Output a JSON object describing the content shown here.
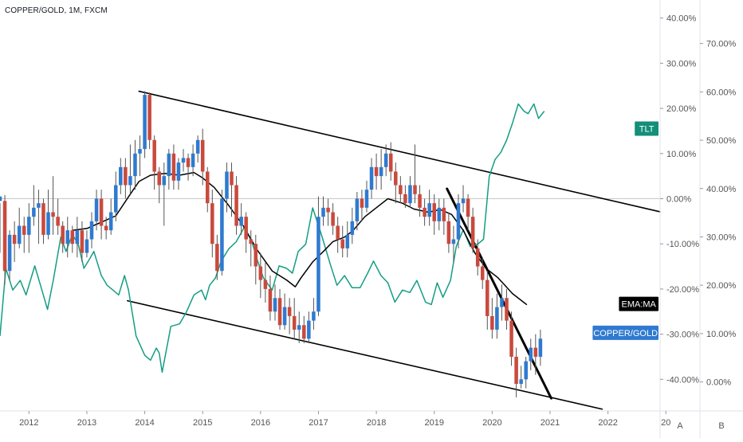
{
  "header": {
    "symbol_label": "COPPER/GOLD, 1M, FXCM"
  },
  "colors": {
    "background": "#ffffff",
    "up_candle": "#2f7ad0",
    "down_candle": "#c94a3d",
    "wick": "#555555",
    "tlt_line": "#149d85",
    "ema_line": "#000000",
    "trendline": "#000000",
    "zero_line": "#c8c8c8",
    "axis_text": "#555555",
    "tlt_tag_bg": "#138f7a",
    "ema_tag_bg": "#000000",
    "copper_tag_bg": "#2f7ad0"
  },
  "chart_data": {
    "type": "candlestick",
    "title": "COPPER/GOLD, 1M, FXCM",
    "x_axis": {
      "tick_labels": [
        "2012",
        "2013",
        "2014",
        "2015",
        "2016",
        "2017",
        "2018",
        "2019",
        "2020",
        "2021",
        "2022",
        "20"
      ],
      "range": [
        2011.5,
        2022.9
      ]
    },
    "axis_a": {
      "name": "A",
      "tick_labels": [
        "40.00%",
        "30.00%",
        "20.00%",
        "10.00%",
        "0.00%",
        "-10.00%",
        "-20.00%",
        "-30.00%",
        "-40.00%"
      ],
      "range_pct": [
        -47,
        44
      ]
    },
    "axis_b": {
      "name": "B",
      "tick_labels": [
        "70.00%",
        "60.00%",
        "50.00%",
        "40.00%",
        "30.00%",
        "20.00%",
        "10.00%",
        "0.00%"
      ],
      "range_pct": [
        -6,
        79
      ]
    },
    "grid": false,
    "zero_line": true,
    "candles_copper_gold_pct": [
      [
        -0.5,
        0.5,
        -12,
        -1
      ],
      [
        -0.5,
        -16,
        -19,
        0.8
      ],
      [
        -16,
        -8,
        -18,
        -7
      ],
      [
        -8,
        -10,
        -14,
        -5
      ],
      [
        -10,
        -6,
        -11,
        -2
      ],
      [
        -6,
        -8,
        -12,
        -4
      ],
      [
        -8,
        -4,
        -12,
        -1
      ],
      [
        -4,
        -2,
        -6,
        3
      ],
      [
        -2,
        -1,
        -10,
        2
      ],
      [
        -1,
        -8,
        -10,
        0
      ],
      [
        -8,
        -3,
        -9,
        2
      ],
      [
        -3,
        -4,
        -8,
        5
      ],
      [
        -4,
        -6,
        -8,
        0
      ],
      [
        -6,
        -10,
        -12,
        -5
      ],
      [
        -10,
        -7,
        -13,
        -4
      ],
      [
        -7,
        -10,
        -12,
        -6
      ],
      [
        -10,
        -7,
        -13,
        -4
      ],
      [
        -7,
        -12,
        -14,
        -5
      ],
      [
        -12,
        -9,
        -13,
        -7
      ],
      [
        -9,
        -5,
        -11,
        -3
      ],
      [
        -5,
        0,
        -7,
        2
      ],
      [
        0,
        -6,
        -9,
        2
      ],
      [
        -6,
        -7,
        -9,
        -4
      ],
      [
        -7,
        -3,
        -8,
        0
      ],
      [
        -3,
        3,
        -5,
        6
      ],
      [
        3,
        7,
        1,
        9
      ],
      [
        7,
        3,
        0,
        9
      ],
      [
        3,
        5,
        1,
        12
      ],
      [
        5,
        10,
        2,
        13
      ],
      [
        10,
        11,
        5,
        14
      ],
      [
        11,
        23,
        9,
        23.8
      ],
      [
        23,
        13,
        11,
        23.5
      ],
      [
        13,
        6,
        2,
        14
      ],
      [
        6,
        3,
        -1,
        7
      ],
      [
        3,
        5,
        -6,
        8
      ],
      [
        5,
        10,
        2,
        11
      ],
      [
        10,
        4,
        2,
        12
      ],
      [
        4,
        8,
        2,
        9
      ],
      [
        8,
        9,
        6,
        11
      ],
      [
        9,
        7,
        4,
        10
      ],
      [
        7,
        10,
        5,
        12
      ],
      [
        10,
        13,
        8,
        14
      ],
      [
        13,
        6,
        3,
        15.5
      ],
      [
        6,
        -1,
        -3,
        7
      ],
      [
        -1,
        -10,
        -13,
        2
      ],
      [
        -10,
        -16,
        -18,
        -8
      ],
      [
        -16,
        0,
        -17,
        2
      ],
      [
        0,
        6,
        -3,
        8
      ],
      [
        6,
        3,
        -4,
        8
      ],
      [
        3,
        -6,
        -8,
        5
      ],
      [
        -6,
        -4,
        -8,
        -1
      ],
      [
        -4,
        -9,
        -12,
        -3
      ],
      [
        -9,
        -10,
        -15,
        -7
      ],
      [
        -10,
        -15,
        -19,
        -8
      ],
      [
        -15,
        -18,
        -22,
        -12
      ],
      [
        -18,
        -20,
        -23,
        -14
      ],
      [
        -20,
        -25,
        -27,
        -17
      ],
      [
        -25,
        -22,
        -27,
        -19
      ],
      [
        -22,
        -28,
        -29,
        -20
      ],
      [
        -28,
        -24,
        -29,
        -21
      ],
      [
        -24,
        -26,
        -30,
        -22
      ],
      [
        -26,
        -29,
        -31,
        -22
      ],
      [
        -29,
        -28,
        -32,
        -25
      ],
      [
        -28,
        -31,
        -32,
        -26
      ],
      [
        -31,
        -27,
        -32,
        -25
      ],
      [
        -27,
        -25,
        -29,
        -22
      ],
      [
        -25,
        -4,
        -26,
        0.5
      ],
      [
        -4,
        -2,
        -6,
        0.5
      ],
      [
        -2,
        -3,
        -6,
        0
      ],
      [
        -3,
        -6,
        -8,
        -1
      ],
      [
        -6,
        -9,
        -12,
        -4
      ],
      [
        -9,
        -11,
        -13,
        -6
      ],
      [
        -11,
        -8,
        -13,
        -5
      ],
      [
        -8,
        -5,
        -10,
        -2
      ],
      [
        -5,
        0,
        -7,
        1.5
      ],
      [
        0,
        -2,
        -5,
        2
      ],
      [
        -2,
        2,
        -3,
        4
      ],
      [
        2,
        7,
        0,
        9
      ],
      [
        7,
        5,
        2,
        10
      ],
      [
        5,
        7,
        2,
        11
      ],
      [
        7,
        10,
        5,
        12
      ],
      [
        10,
        6,
        4,
        12.5
      ],
      [
        6,
        3,
        -1,
        8
      ],
      [
        3,
        1,
        -1,
        5
      ],
      [
        1,
        -1,
        -2,
        3
      ],
      [
        -1,
        3,
        -2,
        5
      ],
      [
        3,
        1,
        -1,
        12
      ],
      [
        1,
        -2,
        -4,
        3
      ],
      [
        -2,
        -4,
        -6,
        0
      ],
      [
        -4,
        -1,
        -6,
        2
      ],
      [
        -1,
        -5,
        -8,
        1
      ],
      [
        -5,
        -2,
        -7,
        0
      ],
      [
        -2,
        -5,
        -8,
        0
      ],
      [
        -5,
        -10,
        -12,
        -3
      ],
      [
        -10,
        -9,
        -14,
        -6
      ],
      [
        -9,
        -1,
        -11,
        1
      ],
      [
        -1,
        0,
        -3,
        3
      ],
      [
        0,
        -4,
        -7,
        1
      ],
      [
        -4,
        -11,
        -12,
        -2
      ],
      [
        -11,
        -15,
        -17,
        -9
      ],
      [
        -15,
        -18,
        -20,
        -13
      ],
      [
        -18,
        -26,
        -29,
        -16
      ],
      [
        -26,
        -29,
        -31,
        -22
      ],
      [
        -29,
        -24,
        -31,
        -21
      ],
      [
        -24,
        -22,
        -27,
        -19
      ],
      [
        -22,
        -27,
        -29,
        -20
      ],
      [
        -27,
        -35,
        -37,
        -25
      ],
      [
        -35,
        -41,
        -44,
        -33
      ],
      [
        -41,
        -40,
        -42,
        -37
      ],
      [
        -40,
        -36,
        -42,
        -35
      ],
      [
        -36,
        -33,
        -38,
        -31
      ],
      [
        -33,
        -35,
        -39,
        -30
      ],
      [
        -35,
        -31,
        -37,
        -29
      ]
    ],
    "candle_start": 2011.5,
    "candle_step": 0.08333,
    "ema_ma_pct": [
      [
        2012.75,
        -7
      ],
      [
        2013.0,
        -6.6
      ],
      [
        2013.25,
        -5.2
      ],
      [
        2013.5,
        -3.8
      ],
      [
        2013.75,
        1
      ],
      [
        2013.9,
        3.8
      ],
      [
        2014.1,
        5.2
      ],
      [
        2014.35,
        5.6
      ],
      [
        2014.6,
        5.2
      ],
      [
        2014.85,
        5.8
      ],
      [
        2015.0,
        4.6
      ],
      [
        2015.2,
        2.5
      ],
      [
        2015.45,
        -1.5
      ],
      [
        2015.7,
        -6
      ],
      [
        2015.95,
        -11.5
      ],
      [
        2016.2,
        -16
      ],
      [
        2016.45,
        -18
      ],
      [
        2016.6,
        -19.5
      ],
      [
        2016.7,
        -17.5
      ],
      [
        2016.9,
        -14
      ],
      [
        2017.1,
        -11.5
      ],
      [
        2017.25,
        -9.5
      ],
      [
        2017.45,
        -8.5
      ],
      [
        2017.6,
        -7
      ],
      [
        2017.8,
        -4
      ],
      [
        2018.0,
        -2
      ],
      [
        2018.2,
        0
      ],
      [
        2018.45,
        -1
      ],
      [
        2018.65,
        -2.3
      ],
      [
        2018.9,
        -3
      ],
      [
        2019.1,
        -2.4
      ],
      [
        2019.3,
        -3.5
      ],
      [
        2019.5,
        -7
      ],
      [
        2019.7,
        -12
      ],
      [
        2019.9,
        -15.5
      ],
      [
        2020.1,
        -17.5
      ],
      [
        2020.35,
        -21
      ],
      [
        2020.6,
        -23.5
      ]
    ],
    "tlt_pct_axis_b": [
      [
        2011.5,
        9.5
      ],
      [
        2011.6,
        23.5
      ],
      [
        2011.72,
        19
      ],
      [
        2011.85,
        21
      ],
      [
        2011.95,
        18
      ],
      [
        2012.1,
        24
      ],
      [
        2012.2,
        20
      ],
      [
        2012.32,
        15
      ],
      [
        2012.42,
        21
      ],
      [
        2012.55,
        30
      ],
      [
        2012.64,
        27
      ],
      [
        2012.75,
        30.5
      ],
      [
        2012.85,
        28.5
      ],
      [
        2012.95,
        23.5
      ],
      [
        2013.05,
        25.5
      ],
      [
        2013.12,
        27
      ],
      [
        2013.25,
        22
      ],
      [
        2013.35,
        20
      ],
      [
        2013.45,
        19
      ],
      [
        2013.55,
        18
      ],
      [
        2013.65,
        22
      ],
      [
        2013.72,
        19
      ],
      [
        2013.85,
        9.5
      ],
      [
        2014.0,
        5.5
      ],
      [
        2014.1,
        4.5
      ],
      [
        2014.2,
        7
      ],
      [
        2014.25,
        6
      ],
      [
        2014.3,
        2
      ],
      [
        2014.45,
        11.5
      ],
      [
        2014.6,
        12
      ],
      [
        2014.72,
        14.5
      ],
      [
        2014.85,
        18
      ],
      [
        2014.98,
        19
      ],
      [
        2015.05,
        17
      ],
      [
        2015.12,
        20
      ],
      [
        2015.22,
        21.5
      ],
      [
        2015.32,
        25
      ],
      [
        2015.45,
        27.5
      ],
      [
        2015.58,
        29
      ],
      [
        2015.72,
        32
      ],
      [
        2015.85,
        29
      ],
      [
        2015.95,
        25
      ],
      [
        2016.05,
        21.5
      ],
      [
        2016.2,
        19
      ],
      [
        2016.32,
        24
      ],
      [
        2016.45,
        23.5
      ],
      [
        2016.55,
        22.5
      ],
      [
        2016.65,
        27
      ],
      [
        2016.78,
        28.5
      ],
      [
        2016.9,
        36
      ],
      [
        2017.05,
        30.5
      ],
      [
        2017.2,
        24.5
      ],
      [
        2017.32,
        20
      ],
      [
        2017.45,
        22
      ],
      [
        2017.58,
        19.5
      ],
      [
        2017.72,
        19.5
      ],
      [
        2017.85,
        22.5
      ],
      [
        2017.95,
        25
      ],
      [
        2018.08,
        22
      ],
      [
        2018.2,
        20.5
      ],
      [
        2018.32,
        16.5
      ],
      [
        2018.45,
        19
      ],
      [
        2018.58,
        18.5
      ],
      [
        2018.7,
        21
      ],
      [
        2018.85,
        16.5
      ],
      [
        2018.95,
        16
      ],
      [
        2019.05,
        20.5
      ],
      [
        2019.15,
        17.5
      ],
      [
        2019.28,
        21
      ],
      [
        2019.38,
        28
      ],
      [
        2019.5,
        31.5
      ],
      [
        2019.62,
        28
      ],
      [
        2019.75,
        28.5
      ],
      [
        2019.85,
        29.5
      ],
      [
        2019.95,
        42.5
      ],
      [
        2020.05,
        46
      ],
      [
        2020.15,
        47.5
      ],
      [
        2020.25,
        50
      ],
      [
        2020.35,
        53.5
      ],
      [
        2020.45,
        57.5
      ],
      [
        2020.55,
        56
      ],
      [
        2020.62,
        55.5
      ],
      [
        2020.72,
        57.5
      ],
      [
        2020.8,
        54.5
      ],
      [
        2020.9,
        56
      ]
    ],
    "series_tags": [
      {
        "name": "TLT",
        "axis": "B",
        "value_pct": 52.4
      },
      {
        "name": "EMA:MA",
        "axis": "A",
        "value_pct": -23.3
      },
      {
        "name": "COPPER/GOLD",
        "axis": "A",
        "value_pct": -29.7
      }
    ],
    "trendlines_pct": [
      [
        [
          2013.9,
          23.8
        ],
        [
          2022.9,
          -2.9
        ]
      ],
      [
        [
          2013.7,
          -22.6
        ],
        [
          2021.9,
          -46.6
        ]
      ],
      [
        [
          2019.22,
          2.2
        ],
        [
          2021.02,
          -44.2
        ]
      ]
    ]
  }
}
